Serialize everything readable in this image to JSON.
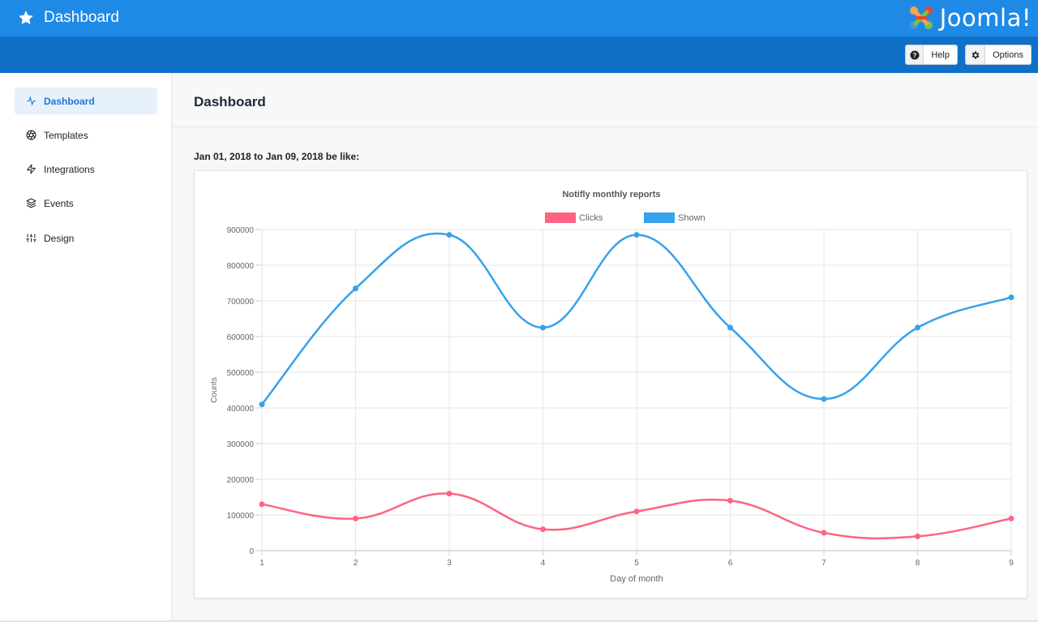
{
  "header": {
    "title": "Dashboard",
    "logo_text": "Joomla!"
  },
  "toolbar": {
    "help_label": "Help",
    "options_label": "Options"
  },
  "sidebar": {
    "items": [
      {
        "label": "Dashboard",
        "icon": "activity-icon",
        "active": true
      },
      {
        "label": "Templates",
        "icon": "aperture-icon",
        "active": false
      },
      {
        "label": "Integrations",
        "icon": "zap-icon",
        "active": false
      },
      {
        "label": "Events",
        "icon": "layers-icon",
        "active": false
      },
      {
        "label": "Design",
        "icon": "sliders-icon",
        "active": false
      }
    ]
  },
  "main": {
    "page_title": "Dashboard",
    "subtitle": "Jan 01, 2018 to Jan 09, 2018 be like:"
  },
  "colors": {
    "clicks": "#ff6384",
    "shown": "#36a2eb",
    "topbar": "#1f8ae6",
    "toolbar": "#1070c8"
  },
  "chart_data": {
    "type": "line",
    "title": "Notifly monthly reports",
    "xlabel": "Day of month",
    "ylabel": "Counts",
    "x": [
      1,
      2,
      3,
      4,
      5,
      6,
      7,
      8,
      9
    ],
    "ylim": [
      0,
      900000
    ],
    "yticks": [
      0,
      100000,
      200000,
      300000,
      400000,
      500000,
      600000,
      700000,
      800000,
      900000
    ],
    "grid": true,
    "legend": "top",
    "series": [
      {
        "name": "Clicks",
        "color": "#ff6384",
        "values": [
          130000,
          90000,
          160000,
          60000,
          110000,
          140000,
          50000,
          40000,
          90000
        ]
      },
      {
        "name": "Shown",
        "color": "#36a2eb",
        "values": [
          410000,
          735000,
          885000,
          625000,
          885000,
          625000,
          425000,
          625000,
          710000
        ]
      }
    ]
  }
}
